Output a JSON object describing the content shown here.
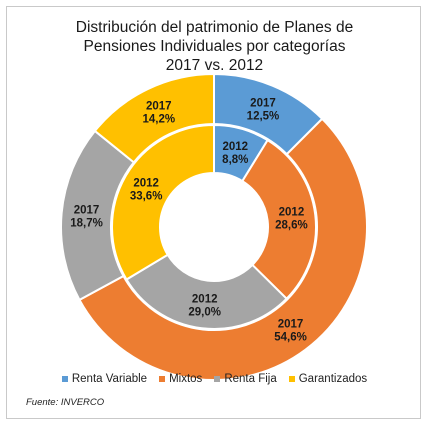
{
  "chart_data": {
    "type": "donut",
    "title_lines": [
      "Distribución  del patrimonio  de Planes de",
      "Pensiones Individuales por categorías",
      "2017 vs. 2012"
    ],
    "categories": [
      "Renta Variable",
      "Mixtos",
      "Renta Fija",
      "Garantizados"
    ],
    "colors": [
      "#5b9bd5",
      "#ed7d31",
      "#a5a5a5",
      "#ffc000"
    ],
    "series": [
      {
        "name": "2017",
        "ring": "outer",
        "values": [
          12.5,
          54.6,
          18.7,
          14.2
        ],
        "labels": [
          "12,5%",
          "54,6%",
          "18,7%",
          "14,2%"
        ]
      },
      {
        "name": "2012",
        "ring": "inner",
        "values": [
          8.8,
          28.6,
          29.0,
          33.6
        ],
        "labels": [
          "8,8%",
          "28,6%",
          "29,0%",
          "33,6%"
        ]
      }
    ],
    "legend_position": "bottom",
    "source": "Fuente: INVERCO"
  }
}
